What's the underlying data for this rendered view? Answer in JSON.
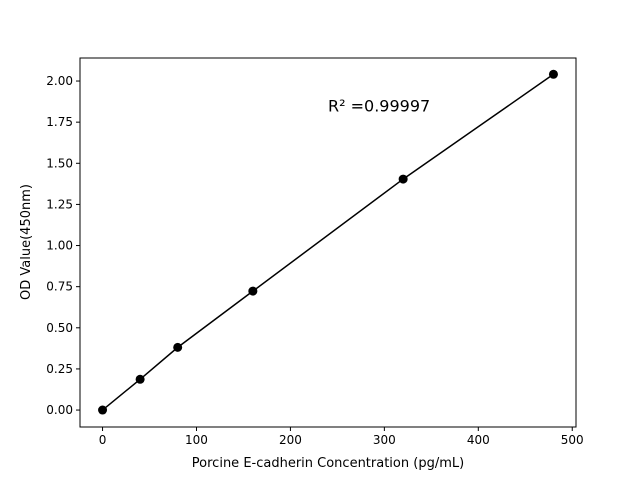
{
  "chart_data": {
    "type": "line",
    "title": "",
    "xlabel": "Porcine E-cadherin Concentration (pg/mL)",
    "ylabel": "OD Value(450nm)",
    "xlim": [
      -24,
      504
    ],
    "ylim": [
      -0.103,
      2.14
    ],
    "xticks": [
      0,
      100,
      200,
      300,
      400,
      500
    ],
    "xtick_labels": [
      "0",
      "100",
      "200",
      "300",
      "400",
      "500"
    ],
    "yticks": [
      0,
      0.25,
      0.5,
      0.75,
      1.0,
      1.25,
      1.5,
      1.75,
      2.0
    ],
    "ytick_labels": [
      "0.00",
      "0.25",
      "0.50",
      "0.75",
      "1.00",
      "1.25",
      "1.50",
      "1.75",
      "2.00"
    ],
    "x": [
      0,
      40,
      80,
      160,
      320,
      480
    ],
    "y": [
      0.0,
      0.187,
      0.381,
      0.723,
      1.404,
      2.041
    ],
    "annotation": "R² =0.99997",
    "annotation_pos": [
      240,
      1.85
    ],
    "grid": false,
    "color": "#000000",
    "marker": "circle"
  }
}
